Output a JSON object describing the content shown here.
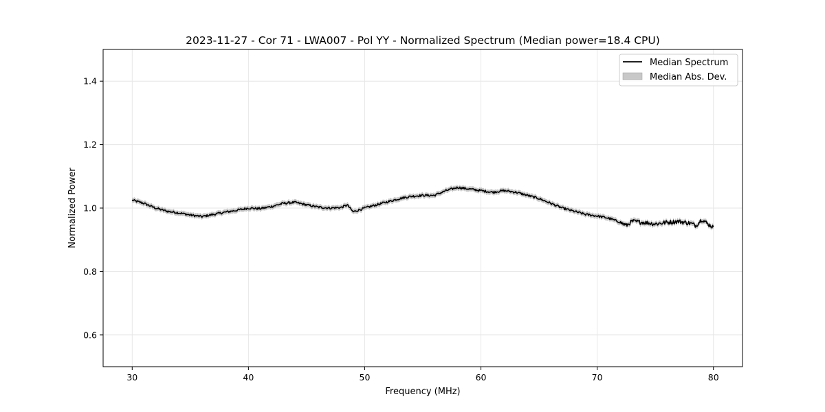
{
  "chart_data": {
    "type": "line",
    "title": "2023-11-27 - Cor 71 - LWA007 - Pol YY - Normalized Spectrum (Median power=18.4 CPU)",
    "xlabel": "Frequency (MHz)",
    "ylabel": "Normalized Power",
    "xlim": [
      27.5,
      82.5
    ],
    "ylim": [
      0.5,
      1.5
    ],
    "xticks": [
      30,
      40,
      50,
      60,
      70,
      80
    ],
    "yticks": [
      0.6,
      0.8,
      1.0,
      1.2,
      1.4
    ],
    "xtick_labels": [
      "30",
      "40",
      "50",
      "60",
      "70",
      "80"
    ],
    "ytick_labels": [
      "0.6",
      "0.8",
      "1.0",
      "1.2",
      "1.4"
    ],
    "grid": true,
    "legend_position": "top-right",
    "colors": {
      "line": "#000000",
      "band": "#b0b0b0"
    },
    "series": [
      {
        "name": "Median Spectrum",
        "kind": "line",
        "x": [
          30,
          31,
          32,
          33,
          34,
          35,
          36,
          37,
          38,
          39,
          40,
          41,
          42,
          43,
          44,
          45,
          46,
          47,
          48,
          48.5,
          49,
          50,
          51,
          52,
          53,
          54,
          55,
          56,
          57,
          58,
          59,
          60,
          61,
          62,
          63,
          64,
          65,
          66,
          67,
          68,
          69,
          70,
          71,
          72,
          72.5,
          73,
          74,
          75,
          76,
          77,
          78,
          78.5,
          79,
          79.5,
          80
        ],
        "y": [
          1.025,
          1.015,
          1.0,
          0.99,
          0.985,
          0.978,
          0.973,
          0.98,
          0.987,
          0.993,
          1.0,
          0.998,
          1.005,
          1.015,
          1.018,
          1.01,
          1.003,
          1.0,
          1.002,
          1.01,
          0.988,
          1.0,
          1.01,
          1.02,
          1.03,
          1.037,
          1.04,
          1.04,
          1.055,
          1.065,
          1.06,
          1.055,
          1.05,
          1.055,
          1.05,
          1.04,
          1.03,
          1.015,
          1.0,
          0.99,
          0.98,
          0.975,
          0.968,
          0.955,
          0.945,
          0.958,
          0.955,
          0.95,
          0.955,
          0.958,
          0.952,
          0.945,
          0.965,
          0.95,
          0.94
        ]
      },
      {
        "name": "Median Abs. Dev.",
        "kind": "band",
        "halfwidth": 0.008
      }
    ]
  }
}
